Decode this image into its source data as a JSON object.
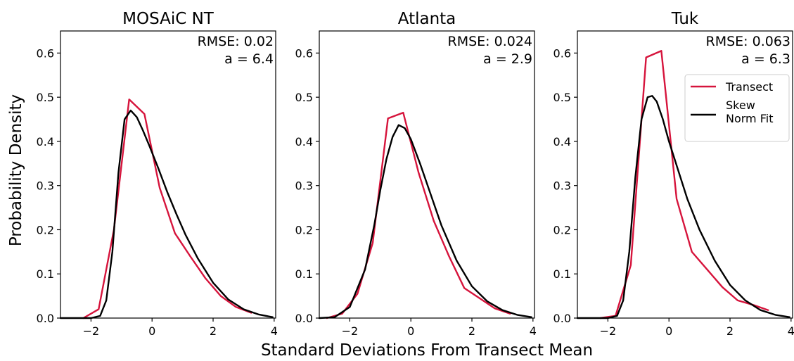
{
  "figure": {
    "ylabel": "Probability Density",
    "xlabel": "Standard Deviations From Transect Mean"
  },
  "colors": {
    "transect": "#d6143c",
    "fit": "#000000"
  },
  "legend": {
    "placement": "upper-right of third panel",
    "entries": [
      "Transect",
      "Skew\nNorm Fit"
    ]
  },
  "chart_data": [
    {
      "type": "line",
      "title": "MOSAiC NT",
      "rmse_label": "RMSE: 0.02",
      "a_label": "a = 6.4",
      "xlim": [
        -3.0,
        4.05
      ],
      "ylim": [
        0,
        0.65
      ],
      "xticks": [
        -2,
        0,
        2,
        4
      ],
      "xtick_labels": [
        "−2",
        "0",
        "2",
        "4"
      ],
      "yticks": [
        0.0,
        0.1,
        0.2,
        0.3,
        0.4,
        0.5,
        0.6
      ],
      "ytick_labels": [
        "0.0",
        "0.1",
        "0.2",
        "0.3",
        "0.4",
        "0.5",
        "0.6"
      ],
      "series": [
        {
          "name": "Transect",
          "x": [
            -2.25,
            -1.75,
            -1.25,
            -0.75,
            -0.25,
            0.25,
            0.75,
            1.25,
            1.75,
            2.25,
            2.75,
            3.25
          ],
          "y": [
            0.0,
            0.02,
            0.2,
            0.495,
            0.462,
            0.295,
            0.192,
            0.14,
            0.09,
            0.05,
            0.025,
            0.012
          ]
        },
        {
          "name": "Skew Norm Fit",
          "x": [
            -3.0,
            -2.0,
            -1.7,
            -1.5,
            -1.3,
            -1.1,
            -0.9,
            -0.7,
            -0.5,
            -0.3,
            -0.1,
            0.2,
            0.5,
            0.8,
            1.1,
            1.5,
            2.0,
            2.5,
            3.0,
            3.5,
            3.95
          ],
          "y": [
            0.0,
            0.0,
            0.005,
            0.04,
            0.15,
            0.33,
            0.45,
            0.47,
            0.455,
            0.425,
            0.392,
            0.34,
            0.285,
            0.235,
            0.188,
            0.135,
            0.08,
            0.042,
            0.02,
            0.008,
            0.002
          ]
        }
      ]
    },
    {
      "type": "line",
      "title": "Atlanta",
      "rmse_label": "RMSE: 0.024",
      "a_label": "a = 2.9",
      "xlim": [
        -3.0,
        4.05
      ],
      "ylim": [
        0,
        0.65
      ],
      "xticks": [
        -2,
        0,
        2,
        4
      ],
      "xtick_labels": [
        "−2",
        "0",
        "2",
        "4"
      ],
      "yticks": [
        0.0,
        0.1,
        0.2,
        0.3,
        0.4,
        0.5,
        0.6
      ],
      "ytick_labels": [
        "0.0",
        "0.1",
        "0.2",
        "0.3",
        "0.4",
        "0.5",
        "0.6"
      ],
      "series": [
        {
          "name": "Transect",
          "x": [
            -2.75,
            -2.25,
            -1.75,
            -1.25,
            -0.75,
            -0.25,
            0.25,
            0.75,
            1.25,
            1.75,
            2.25,
            2.75,
            3.25
          ],
          "y": [
            0.0,
            0.01,
            0.055,
            0.17,
            0.452,
            0.465,
            0.33,
            0.22,
            0.14,
            0.068,
            0.045,
            0.022,
            0.01
          ]
        },
        {
          "name": "Skew Norm Fit",
          "x": [
            -3.0,
            -2.5,
            -2.0,
            -1.5,
            -1.2,
            -1.0,
            -0.8,
            -0.6,
            -0.4,
            -0.2,
            0.0,
            0.3,
            0.6,
            1.0,
            1.5,
            2.0,
            2.5,
            3.0,
            3.5,
            3.95
          ],
          "y": [
            0.0,
            0.002,
            0.025,
            0.11,
            0.21,
            0.29,
            0.36,
            0.41,
            0.437,
            0.43,
            0.405,
            0.35,
            0.29,
            0.21,
            0.13,
            0.072,
            0.038,
            0.018,
            0.007,
            0.002
          ]
        }
      ]
    },
    {
      "type": "line",
      "title": "Tuk",
      "rmse_label": "RMSE: 0.063",
      "a_label": "a = 6.3",
      "xlim": [
        -3.0,
        4.05
      ],
      "ylim": [
        0,
        0.65
      ],
      "xticks": [
        -2,
        0,
        2,
        4
      ],
      "xtick_labels": [
        "−2",
        "0",
        "2",
        "4"
      ],
      "yticks": [
        0.0,
        0.1,
        0.2,
        0.3,
        0.4,
        0.5,
        0.6
      ],
      "ytick_labels": [
        "0.0",
        "0.1",
        "0.2",
        "0.3",
        "0.4",
        "0.5",
        "0.6"
      ],
      "series": [
        {
          "name": "Transect",
          "x": [
            -2.25,
            -1.75,
            -1.25,
            -0.75,
            -0.25,
            0.25,
            0.75,
            1.25,
            1.75,
            2.25,
            2.75,
            3.25
          ],
          "y": [
            0.0,
            0.005,
            0.12,
            0.59,
            0.605,
            0.27,
            0.15,
            0.11,
            0.07,
            0.04,
            0.03,
            0.018
          ]
        },
        {
          "name": "Skew Norm Fit",
          "x": [
            -3.0,
            -2.0,
            -1.7,
            -1.5,
            -1.3,
            -1.1,
            -0.9,
            -0.7,
            -0.55,
            -0.4,
            -0.2,
            0.0,
            0.3,
            0.6,
            1.0,
            1.5,
            2.0,
            2.5,
            3.0,
            3.5,
            3.95
          ],
          "y": [
            0.0,
            0.0,
            0.005,
            0.04,
            0.15,
            0.32,
            0.45,
            0.5,
            0.503,
            0.49,
            0.45,
            0.4,
            0.335,
            0.27,
            0.2,
            0.13,
            0.075,
            0.04,
            0.018,
            0.007,
            0.002
          ]
        }
      ]
    }
  ]
}
